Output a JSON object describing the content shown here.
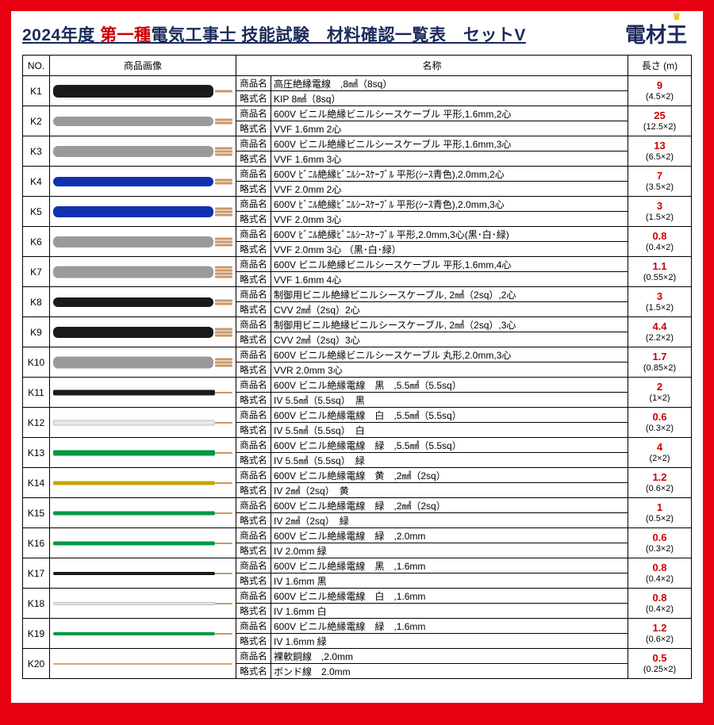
{
  "title_prefix": "2024年度",
  "title_red": "第一種",
  "title_suffix": "電気工事士 技能試験　材料確認一覧表　セットV",
  "logo_text": "電材",
  "logo_king": "王",
  "headers": {
    "no": "NO.",
    "img": "商品画像",
    "name": "名称",
    "len": "長さ (m)"
  },
  "label_name": "商品名",
  "label_abbr": "略式名",
  "rows": [
    {
      "no": "K1",
      "name": "高圧絶縁電線　,8㎟（8sq）",
      "abbr": "KIP 8㎟（8sq）",
      "len": "9",
      "sub": "(4.5×2)",
      "c": "#1a1a1a",
      "h": 16,
      "type": "cable",
      "cores": 1
    },
    {
      "no": "K2",
      "name": "600V ビニル絶縁ビニルシースケーブル 平形,1.6mm,2心",
      "abbr": "VVF 1.6mm 2心",
      "len": "25",
      "sub": "(12.5×2)",
      "c": "#9a9a9a",
      "h": 12,
      "type": "cable",
      "cores": 2
    },
    {
      "no": "K3",
      "name": "600V ビニル絶縁ビニルシースケーブル 平形,1.6mm,3心",
      "abbr": "VVF 1.6mm 3心",
      "len": "13",
      "sub": "(6.5×2)",
      "c": "#9a9a9a",
      "h": 14,
      "type": "cable",
      "cores": 3
    },
    {
      "no": "K4",
      "name": "600V ﾋﾞﾆﾙ絶縁ﾋﾞﾆﾙｼｰｽｹｰﾌﾞﾙ 平形(ｼｰｽ青色),2.0mm,2心",
      "abbr": "VVF 2.0mm 2心",
      "len": "7",
      "sub": "(3.5×2)",
      "c": "#1030b0",
      "h": 12,
      "type": "cable",
      "cores": 2
    },
    {
      "no": "K5",
      "name": "600V ﾋﾞﾆﾙ絶縁ﾋﾞﾆﾙｼｰｽｹｰﾌﾞﾙ 平形(ｼｰｽ青色),2.0mm,3心",
      "abbr": "VVF 2.0mm 3心",
      "len": "3",
      "sub": "(1.5×2)",
      "c": "#1030b0",
      "h": 14,
      "type": "cable",
      "cores": 3
    },
    {
      "no": "K6",
      "name": "600V ﾋﾞﾆﾙ絶縁ﾋﾞﾆﾙｼｰｽｹｰﾌﾞﾙ 平形,2.0mm,3心(黒･白･緑)",
      "abbr": "VVF 2.0mm 3心 （黒･白･緑）",
      "len": "0.8",
      "sub": "(0.4×2)",
      "c": "#9a9a9a",
      "h": 14,
      "type": "cable",
      "cores": 3
    },
    {
      "no": "K7",
      "name": "600V ビニル絶縁ビニルシースケーブル 平形,1.6mm,4心",
      "abbr": "VVF 1.6mm 4心",
      "len": "1.1",
      "sub": "(0.55×2)",
      "c": "#9a9a9a",
      "h": 15,
      "type": "cable",
      "cores": 4
    },
    {
      "no": "K8",
      "name": "制御用ビニル絶縁ビニルシースケーブル,  2㎟（2sq）,2心",
      "abbr": "CVV 2㎟（2sq）2心",
      "len": "3",
      "sub": "(1.5×2)",
      "c": "#1a1a1a",
      "h": 12,
      "type": "cable",
      "cores": 2
    },
    {
      "no": "K9",
      "name": "制御用ビニル絶縁ビニルシースケーブル,  2㎟（2sq）,3心",
      "abbr": "CVV 2㎟（2sq）3心",
      "len": "4.4",
      "sub": "(2.2×2)",
      "c": "#1a1a1a",
      "h": 14,
      "type": "cable",
      "cores": 3
    },
    {
      "no": "K10",
      "name": "600V ビニル絶縁ビニルシースケーブル 丸形,2.0mm,3心",
      "abbr": "VVR 2.0mm 3心",
      "len": "1.7",
      "sub": "(0.85×2)",
      "c": "#9a9a9a",
      "h": 15,
      "type": "cable",
      "cores": 3
    },
    {
      "no": "K11",
      "name": "600V ビニル絶縁電線　黒　,5.5㎟（5.5sq）",
      "abbr": "IV 5.5㎟（5.5sq）　黒",
      "len": "2",
      "sub": "(1×2)",
      "c": "#1a1a1a",
      "h": 7,
      "type": "wire"
    },
    {
      "no": "K12",
      "name": "600V ビニル絶縁電線　白　,5.5㎟（5.5sq）",
      "abbr": "IV 5.5㎟（5.5sq）　白",
      "len": "0.6",
      "sub": "(0.3×2)",
      "c": "#e8e8e8",
      "h": 7,
      "type": "wire"
    },
    {
      "no": "K13",
      "name": "600V ビニル絶縁電線　緑　,5.5㎟（5.5sq）",
      "abbr": "IV 5.5㎟（5.5sq）　緑",
      "len": "4",
      "sub": "(2×2)",
      "c": "#009944",
      "h": 7,
      "type": "wire"
    },
    {
      "no": "K14",
      "name": "600V ビニル絶縁電線　黄　,2㎟（2sq）",
      "abbr": "IV 2㎟（2sq）　黄",
      "len": "1.2",
      "sub": "(0.6×2)",
      "c": "#c9a400",
      "h": 5,
      "type": "wire"
    },
    {
      "no": "K15",
      "name": "600V ビニル絶縁電線　緑　,2㎟（2sq）",
      "abbr": "IV 2㎟（2sq）　緑",
      "len": "1",
      "sub": "(0.5×2)",
      "c": "#009944",
      "h": 5,
      "type": "wire"
    },
    {
      "no": "K16",
      "name": "600V ビニル絶縁電線　緑　,2.0mm",
      "abbr": "IV 2.0mm 緑",
      "len": "0.6",
      "sub": "(0.3×2)",
      "c": "#009944",
      "h": 5,
      "type": "wire"
    },
    {
      "no": "K17",
      "name": "600V ビニル絶縁電線　黒　,1.6mm",
      "abbr": "IV 1.6mm 黒",
      "len": "0.8",
      "sub": "(0.4×2)",
      "c": "#1a1a1a",
      "h": 4,
      "type": "wire"
    },
    {
      "no": "K18",
      "name": "600V ビニル絶縁電線　白　,1.6mm",
      "abbr": "IV 1.6mm 白",
      "len": "0.8",
      "sub": "(0.4×2)",
      "c": "#e8e8e8",
      "h": 4,
      "type": "wire"
    },
    {
      "no": "K19",
      "name": "600V ビニル絶縁電線　緑　,1.6mm",
      "abbr": "IV 1.6mm 緑",
      "len": "1.2",
      "sub": "(0.6×2)",
      "c": "#009944",
      "h": 4,
      "type": "wire"
    },
    {
      "no": "K20",
      "name": "裸軟銅線　,2.0mm",
      "abbr": "ボンド線　2.0mm",
      "len": "0.5",
      "sub": "(0.25×2)",
      "c": "#d8a878",
      "h": 2,
      "type": "bare"
    }
  ]
}
